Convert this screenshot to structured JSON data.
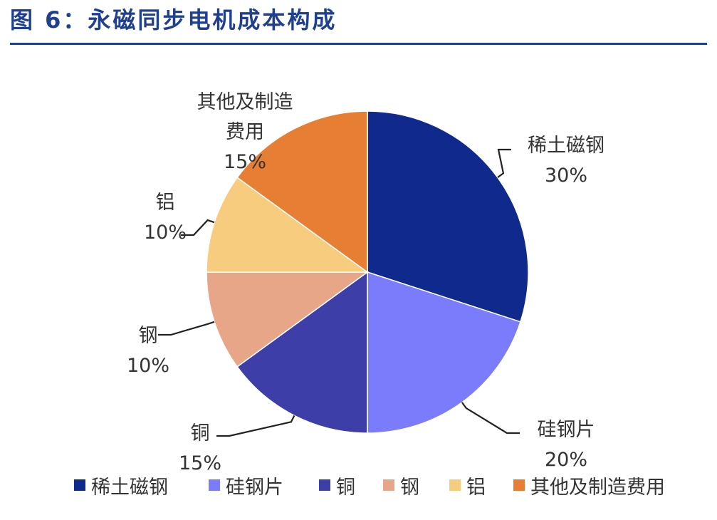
{
  "figure": {
    "title": "图 6：永磁同步电机成本构成"
  },
  "chart_data": {
    "type": "pie",
    "title": "",
    "start_angle_deg": 0,
    "direction": "clockwise",
    "slices": [
      {
        "label": "稀土磁钢",
        "value": 30,
        "value_label": "30%",
        "color": "#0f2a8c"
      },
      {
        "label": "硅钢片",
        "value": 20,
        "value_label": "20%",
        "color": "#7a7cfc"
      },
      {
        "label": "铜",
        "value": 15,
        "value_label": "15%",
        "color": "#3d3ea8"
      },
      {
        "label": "钢",
        "value": 10,
        "value_label": "10%",
        "color": "#e8a688"
      },
      {
        "label": "铝",
        "value": 10,
        "value_label": "10%",
        "color": "#f7cc7f"
      },
      {
        "label": "其他及制造费用",
        "value": 15,
        "value_label": "15%",
        "color": "#e67e34"
      }
    ],
    "label_lines": [
      [
        "稀土磁钢"
      ],
      [
        "硅钢片"
      ],
      [
        "铜"
      ],
      [
        "钢"
      ],
      [
        "铝"
      ],
      [
        "其他及制造",
        "费用"
      ]
    ],
    "legend": {
      "position": "bottom",
      "items": [
        "稀土磁钢",
        "硅钢片",
        "铜",
        "钢",
        "铝",
        "其他及制造费用"
      ]
    }
  }
}
